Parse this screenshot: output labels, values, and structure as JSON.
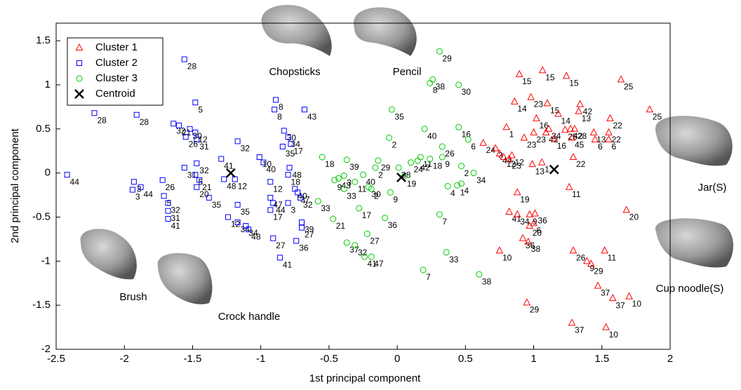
{
  "chart_data": {
    "type": "scatter",
    "x_label": "1st principal component",
    "y_label": "2nd principal component",
    "xlim": [
      -2.5,
      2
    ],
    "ylim": [
      -2,
      1.7
    ],
    "xticks": [
      -2.5,
      -2,
      -1.5,
      -1,
      -0.5,
      0,
      0.5,
      1,
      1.5,
      2
    ],
    "yticks": [
      -2,
      -1.5,
      -1,
      -0.5,
      0,
      0.5,
      1,
      1.5
    ],
    "legend": "upper left",
    "annotations": [
      "Chopsticks",
      "Pencil",
      "Jar(S)",
      "Cup noodle(S)",
      "Brush",
      "Crock handle"
    ],
    "series": [
      {
        "name": "Cluster 1",
        "color": "#ff0000",
        "marker": "triangle",
        "x": [
          0.895,
          1.065,
          1.24,
          1.64,
          1.85,
          0.98,
          0.86,
          1.1,
          1.18,
          1.34,
          1.33,
          1.56,
          1.55,
          1.55,
          1.44,
          1.45,
          1.23,
          1.27,
          1.3,
          1.28,
          1.02,
          1.0,
          1.09,
          1.11,
          1.15,
          0.8,
          0.93,
          0.63,
          0.72,
          0.75,
          0.78,
          0.82,
          0.84,
          1.29,
          0.99,
          1.06,
          1.26,
          0.88,
          0.82,
          0.88,
          0.97,
          1.01,
          1.0,
          1.68,
          0.97,
          0.92,
          0.96,
          0.75,
          1.29,
          1.39,
          1.42,
          1.52,
          1.47,
          1.58,
          1.7,
          0.95,
          1.28,
          1.53
        ],
        "values": [
          1.12,
          1.165,
          1.1,
          1.06,
          0.72,
          0.86,
          0.81,
          0.79,
          0.67,
          0.78,
          0.7,
          0.62,
          0.46,
          0.38,
          0.46,
          0.38,
          0.49,
          0.5,
          0.5,
          0.4,
          0.62,
          0.46,
          0.46,
          0.5,
          0.39,
          0.52,
          0.4,
          0.34,
          0.28,
          0.22,
          0.18,
          0.16,
          0.2,
          0.18,
          0.1,
          0.12,
          -0.16,
          -0.22,
          -0.44,
          -0.47,
          -0.47,
          -0.46,
          -0.57,
          -0.42,
          -0.6,
          -0.74,
          -0.78,
          -0.88,
          -0.88,
          -1.0,
          -1.03,
          -0.88,
          -1.28,
          -1.42,
          -1.4,
          -1.47,
          -1.7,
          -1.75
        ],
        "point_labels": [
          "15",
          "15",
          "15",
          "25",
          "25",
          "23",
          "14",
          "15",
          "14",
          "42",
          "13",
          "22",
          "22",
          "6",
          "13",
          "6",
          "25",
          "42",
          "28",
          "45",
          "16",
          "23",
          "42",
          "24",
          "16",
          "1",
          "23",
          "24",
          "3",
          "44",
          "12",
          "23",
          "12",
          "22",
          "13",
          "1",
          "11",
          "19",
          "41",
          "34",
          "9",
          "36",
          "6",
          "20",
          "20",
          "36",
          "38",
          "10",
          "26",
          "9",
          "29",
          "11",
          "37",
          "37",
          "10",
          "29",
          "37",
          "10"
        ]
      },
      {
        "name": "Cluster 2",
        "color": "#0000ff",
        "marker": "square",
        "x": [
          -1.56,
          -2.22,
          -1.91,
          -1.48,
          -1.64,
          -1.6,
          -1.52,
          -1.48,
          -1.55,
          -1.47,
          -1.17,
          -1.29,
          -1.56,
          -1.47,
          -1.48,
          -1.45,
          -1.47,
          -1.72,
          -1.71,
          -1.68,
          -1.68,
          -1.68,
          -2.42,
          -1.93,
          -1.88,
          -1.94,
          -1.38,
          -1.27,
          -1.19,
          -1.17,
          -1.24,
          -1.17,
          -1.11,
          -1.09,
          -0.89,
          -0.9,
          -0.68,
          -0.83,
          -0.8,
          -0.78,
          -0.84,
          -1.01,
          -0.98,
          -0.79,
          -0.8,
          -0.93,
          -0.93,
          -0.91,
          -0.93,
          -0.75,
          -0.73,
          -0.71,
          -0.8,
          -0.7,
          -0.7,
          -0.91,
          -0.74,
          -0.86
        ],
        "values": [
          1.29,
          0.68,
          0.66,
          0.8,
          0.56,
          0.54,
          0.5,
          0.46,
          0.41,
          0.38,
          0.36,
          0.16,
          0.06,
          0.11,
          -0.02,
          -0.08,
          -0.16,
          -0.08,
          -0.26,
          -0.34,
          -0.43,
          -0.52,
          -0.02,
          -0.1,
          -0.16,
          -0.19,
          -0.28,
          -0.07,
          -0.07,
          -0.36,
          -0.5,
          -0.56,
          -0.6,
          -0.64,
          0.83,
          0.72,
          0.72,
          0.48,
          0.41,
          0.33,
          0.3,
          0.18,
          0.12,
          0.06,
          -0.02,
          -0.1,
          -0.28,
          -0.34,
          -0.42,
          -0.18,
          -0.22,
          -0.28,
          -0.34,
          -0.56,
          -0.62,
          -0.74,
          -0.77,
          -0.96
        ],
        "point_labels": [
          "28",
          "28",
          "28",
          "5",
          "32",
          "21",
          "30",
          "12",
          "26",
          "31",
          "32",
          "41",
          "31",
          "32",
          "5",
          "21",
          "20",
          "26",
          "5",
          "32",
          "31",
          "41",
          "44",
          "3",
          "44",
          "3",
          "35",
          "48",
          "12",
          "35",
          "12",
          "34",
          "34",
          "48",
          "8",
          "8",
          "43",
          "30",
          "34",
          "17",
          "35",
          "10",
          "40",
          "48",
          "18",
          "12",
          "47",
          "44",
          "17",
          "40",
          "37",
          "32",
          "3",
          "39",
          "27",
          "27",
          "36",
          "41"
        ]
      },
      {
        "name": "Cluster 3",
        "color": "#00cc00",
        "marker": "circle",
        "x": [
          0.31,
          0.24,
          0.26,
          0.45,
          -0.04,
          0.2,
          0.45,
          0.52,
          -0.06,
          -0.55,
          -0.37,
          0.33,
          0.33,
          0.17,
          0.15,
          0.1,
          0.24,
          -0.14,
          -0.16,
          0.01,
          0.05,
          0.47,
          0.56,
          -0.46,
          -0.43,
          -0.39,
          -0.25,
          -0.21,
          -0.19,
          -0.31,
          -0.39,
          -0.58,
          -0.05,
          0.37,
          0.44,
          0.47,
          -0.28,
          -0.47,
          -0.09,
          0.31,
          -0.22,
          -0.37,
          -0.31,
          -0.24,
          -0.19,
          0.36,
          0.19,
          0.6
        ],
        "values": [
          1.38,
          1.02,
          1.06,
          1.0,
          0.72,
          0.5,
          0.52,
          0.38,
          0.4,
          0.18,
          0.15,
          0.3,
          0.18,
          0.18,
          0.14,
          0.12,
          0.16,
          0.14,
          0.06,
          0.06,
          -0.04,
          0.08,
          0.0,
          -0.08,
          -0.06,
          -0.03,
          -0.02,
          -0.16,
          -0.18,
          -0.1,
          -0.18,
          -0.32,
          -0.22,
          -0.15,
          -0.14,
          -0.12,
          -0.4,
          -0.52,
          -0.51,
          -0.47,
          -0.69,
          -0.79,
          -0.82,
          -0.95,
          -0.95,
          -0.9,
          -1.1,
          -1.15
        ],
        "point_labels": [
          "29",
          "8",
          "38",
          "30",
          "35",
          "40",
          "16",
          "6",
          "2",
          "18",
          "39",
          "26",
          "9",
          "11",
          "42",
          "24",
          "18",
          "29",
          "2",
          "38",
          "19",
          "2",
          "34",
          "9",
          "43",
          "3",
          "40",
          "30",
          "2",
          "11",
          "33",
          "33",
          "9",
          "4",
          "1",
          "4",
          "17",
          "21",
          "36",
          "7",
          "27",
          "37",
          "32",
          "41",
          "47",
          "33",
          "7",
          "38"
        ]
      },
      {
        "name": "Centroid",
        "color": "#000000",
        "marker": "x",
        "x": [
          1.15,
          -1.22,
          0.03
        ],
        "values": [
          0.04,
          0.0,
          -0.05
        ]
      }
    ]
  }
}
